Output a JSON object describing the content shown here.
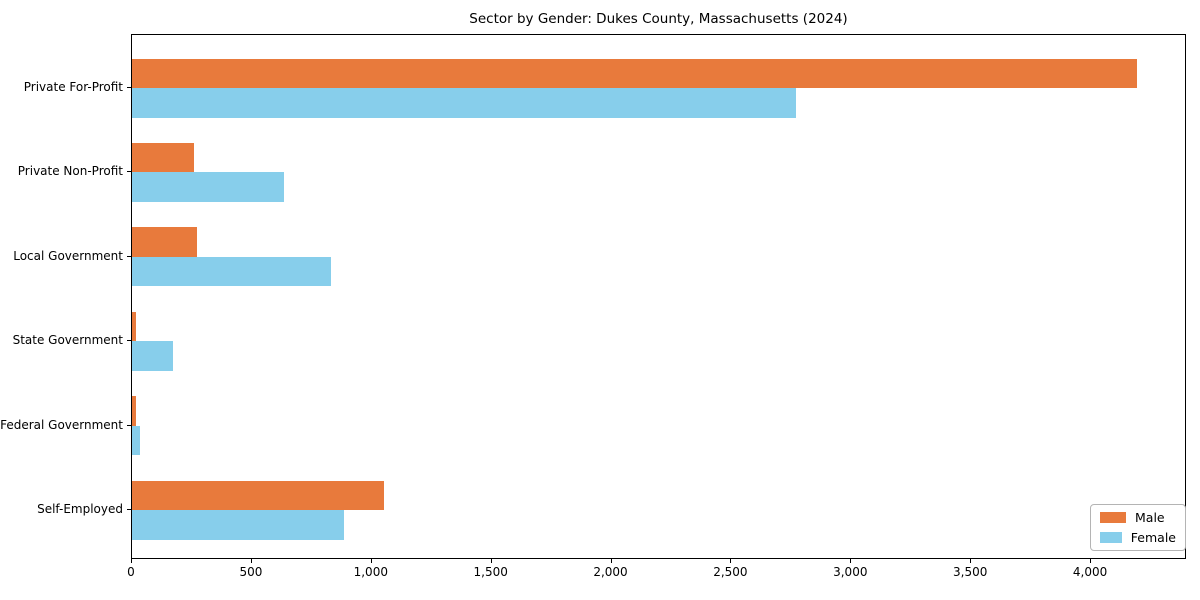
{
  "title": "Sector by Gender: Dukes County, Massachusetts (2024)",
  "chart_data": {
    "type": "bar",
    "orientation": "horizontal",
    "title": "Sector by Gender: Dukes County, Massachusetts (2024)",
    "categories": [
      "Private For-Profit",
      "Private Non-Profit",
      "Local Government",
      "State Government",
      "Federal Government",
      "Self-Employed"
    ],
    "series": [
      {
        "name": "Male",
        "color": "#E87A3C",
        "values": [
          4190,
          260,
          270,
          15,
          15,
          1050
        ]
      },
      {
        "name": "Female",
        "color": "#87CEEB",
        "values": [
          2770,
          635,
          830,
          170,
          35,
          885
        ]
      }
    ],
    "xlabel": "",
    "ylabel": "",
    "xlim": [
      0,
      4400
    ],
    "xticks": [
      0,
      500,
      1000,
      1500,
      2000,
      2500,
      3000,
      3500,
      4000
    ],
    "xtick_labels": [
      "0",
      "500",
      "1,000",
      "1,500",
      "2,000",
      "2,500",
      "3,000",
      "3,500",
      "4,000"
    ],
    "grid": false,
    "legend": {
      "location": "lower right",
      "entries": [
        "Male",
        "Female"
      ]
    }
  }
}
